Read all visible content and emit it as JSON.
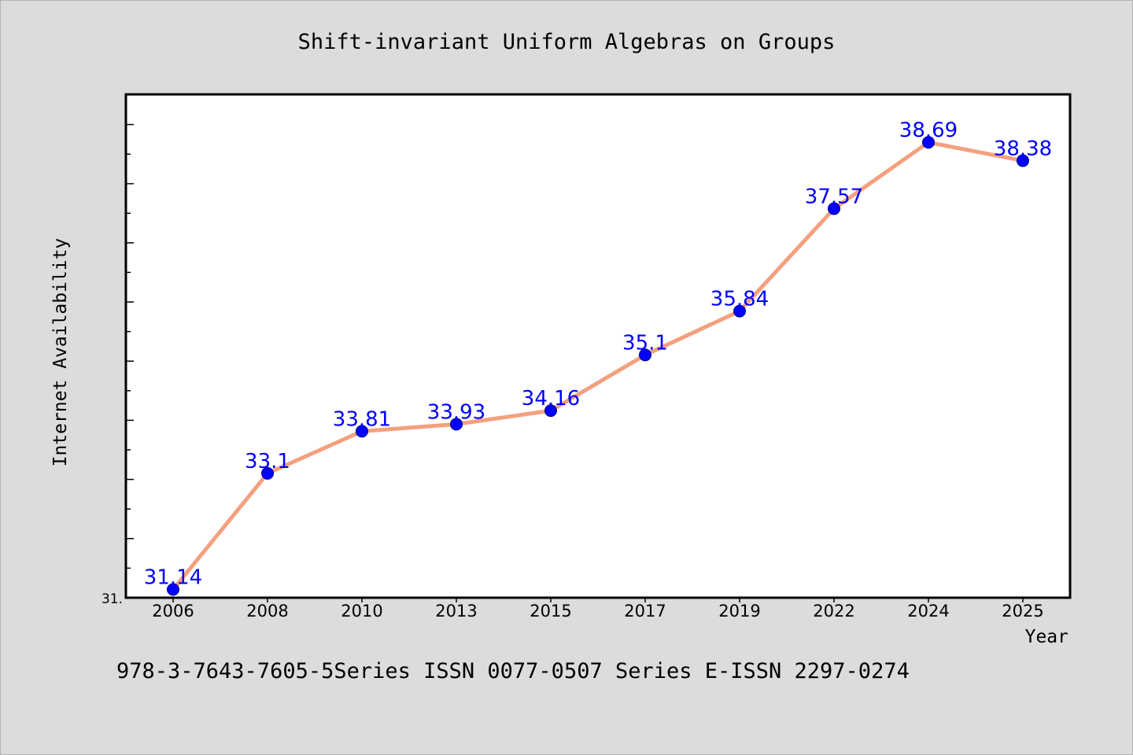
{
  "chart_data": {
    "type": "line",
    "title": "Shift-invariant Uniform Algebras on Groups",
    "xlabel": "Year",
    "ylabel": "Internet Availability",
    "categories": [
      "2006",
      "2008",
      "2010",
      "2013",
      "2015",
      "2017",
      "2019",
      "2022",
      "2024",
      "2025"
    ],
    "series": [
      {
        "values": [
          31.14,
          33.1,
          33.81,
          33.93,
          34.16,
          35.1,
          35.84,
          37.57,
          38.69,
          38.38
        ],
        "data_labels": [
          "31.14",
          "33.1",
          "33.81",
          "33.93",
          "34.16",
          "35.1",
          "35.84",
          "37.57",
          "38.69",
          "38.38"
        ]
      }
    ],
    "ylim": [
      31.0,
      39.5
    ],
    "y_tick_labels": [
      "31."
    ],
    "grid": false,
    "legend": "none",
    "footer": "978-3-7643-7605-5Series ISSN 0077-0507 Series E-ISSN 2297-0274",
    "colors": {
      "background": "#dcdcdc",
      "plot_background": "#ffffff",
      "line": "#f4a07e",
      "marker": "#0000ff",
      "data_label": "#0000ff",
      "text": "#000000"
    }
  }
}
